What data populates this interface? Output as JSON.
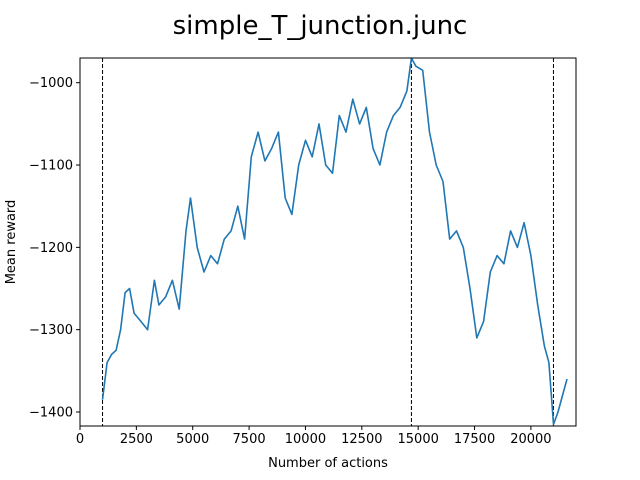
{
  "chart_data": {
    "type": "line",
    "title": "simple_T_junction.junc",
    "xlabel": "Number of actions",
    "ylabel": "Mean reward",
    "xlim": [
      0,
      22000
    ],
    "ylim": [
      -1417,
      -970
    ],
    "xticks": [
      0,
      2500,
      5000,
      7500,
      10000,
      12500,
      15000,
      17500,
      20000
    ],
    "xtick_labels": [
      "0",
      "2500",
      "5000",
      "7500",
      "10000",
      "12500",
      "15000",
      "17500",
      "20000"
    ],
    "yticks": [
      -1400,
      -1300,
      -1200,
      -1100,
      -1000
    ],
    "ytick_labels": [
      "−1400",
      "−1300",
      "−1200",
      "−1100",
      "−1000"
    ],
    "grid": false,
    "line_color": "#1f77b4",
    "vlines": [
      1000,
      14700,
      21000
    ],
    "series": [
      {
        "x": [
          1000,
          1200,
          1400,
          1600,
          1800,
          2000,
          2200,
          2400,
          2700,
          3000,
          3300,
          3500,
          3800,
          4100,
          4400,
          4700,
          4900,
          5200,
          5500,
          5800,
          6100,
          6400,
          6700,
          7000,
          7300,
          7600,
          7900,
          8200,
          8500,
          8800,
          9100,
          9400,
          9700,
          10000,
          10300,
          10600,
          10900,
          11200,
          11500,
          11800,
          12100,
          12400,
          12700,
          13000,
          13300,
          13600,
          13900,
          14200,
          14500,
          14700,
          14900,
          15200,
          15500,
          15800,
          16100,
          16400,
          16700,
          17000,
          17300,
          17600,
          17900,
          18200,
          18500,
          18800,
          19100,
          19400,
          19700,
          20000,
          20300,
          20600,
          20800,
          21000,
          21200,
          21400,
          21600
        ],
        "y": [
          -1385,
          -1340,
          -1330,
          -1325,
          -1300,
          -1255,
          -1250,
          -1280,
          -1290,
          -1300,
          -1240,
          -1270,
          -1260,
          -1240,
          -1275,
          -1180,
          -1140,
          -1200,
          -1230,
          -1210,
          -1220,
          -1190,
          -1180,
          -1150,
          -1190,
          -1090,
          -1060,
          -1095,
          -1080,
          -1060,
          -1140,
          -1160,
          -1100,
          -1070,
          -1090,
          -1050,
          -1100,
          -1110,
          -1040,
          -1060,
          -1020,
          -1050,
          -1030,
          -1080,
          -1100,
          -1060,
          -1040,
          -1030,
          -1010,
          -970,
          -980,
          -985,
          -1060,
          -1100,
          -1120,
          -1190,
          -1180,
          -1200,
          -1250,
          -1310,
          -1290,
          -1230,
          -1210,
          -1220,
          -1180,
          -1200,
          -1170,
          -1210,
          -1270,
          -1320,
          -1340,
          -1415,
          -1400,
          -1380,
          -1360
        ]
      }
    ]
  }
}
